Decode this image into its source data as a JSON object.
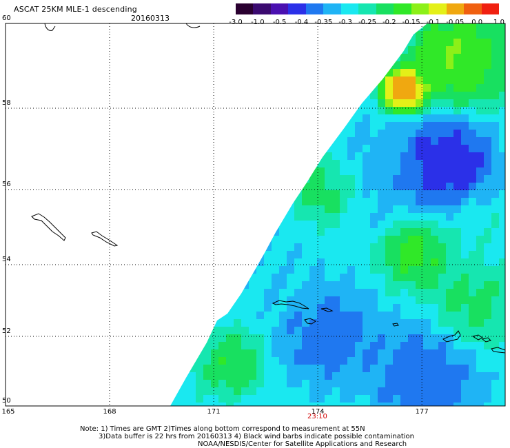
{
  "header": {
    "title": "ASCAT 25KM MLE-1 descending",
    "date": "20160313"
  },
  "colorbar": {
    "colors": [
      "#2a0030",
      "#3b0a70",
      "#4a10b0",
      "#2b30e8",
      "#1f78f0",
      "#1fb4f5",
      "#1ae8f0",
      "#16e6b0",
      "#18e060",
      "#30e828",
      "#8cf018",
      "#e4f018",
      "#f0a810",
      "#f06010",
      "#f02010"
    ],
    "labels": [
      "-3.0",
      "-1.0",
      "-0.5",
      "-0.4",
      "-0.35",
      "-0.3",
      "-0.25",
      "-0.2",
      "-0.15",
      "-0.1",
      "-0.05",
      "0.0",
      "1.0"
    ]
  },
  "axes": {
    "lat_labels": [
      "50",
      "52",
      "54",
      "56",
      "58",
      "60"
    ],
    "lon_labels": [
      "165",
      "168",
      "171",
      "174",
      "177"
    ],
    "lat_range": [
      50,
      60
    ],
    "lon_range": [
      165,
      179.4
    ],
    "grid": "dotted"
  },
  "time_label": "23:10",
  "notes": {
    "line1": "Note: 1) Times are GMT 2)Times along bottom correspond to measurement at 55N",
    "line2": "3)Data buffer is 22 hrs from 20160313 4) Black wind barbs indicate possible contamination",
    "line3": "NOAA/NESDIS/Center for Satellite Applications and Research"
  }
}
